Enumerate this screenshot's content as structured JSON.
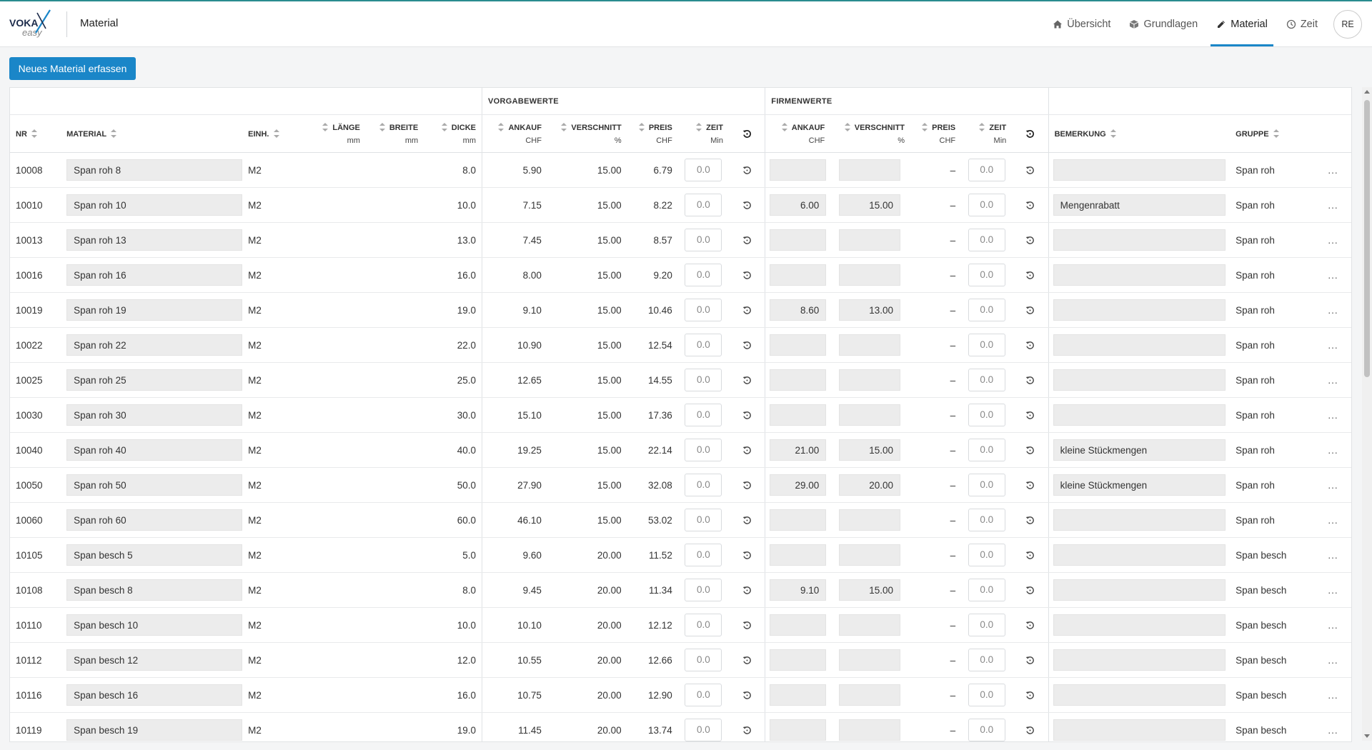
{
  "app": {
    "logo_text": "VOKA easy",
    "page_title": "Material",
    "nav": [
      {
        "label": "Übersicht",
        "icon": "home-icon"
      },
      {
        "label": "Grundlagen",
        "icon": "cube-icon"
      },
      {
        "label": "Material",
        "icon": "pencil-ruler-icon",
        "active": true
      },
      {
        "label": "Zeit",
        "icon": "clock-icon"
      }
    ],
    "user_initials": "RE"
  },
  "toolbar": {
    "new_material_label": "Neues Material erfassen"
  },
  "table": {
    "groups": {
      "vorgabewerte": "VORGABEWERTE",
      "firmenwerte": "FIRMENWERTE"
    },
    "headers": {
      "nr": "NR",
      "material": "MATERIAL",
      "einh": "EINH.",
      "laenge": "LÄNGE",
      "laenge_unit": "mm",
      "breite": "BREITE",
      "breite_unit": "mm",
      "dicke": "DICKE",
      "dicke_unit": "mm",
      "v_ankauf": "ANKAUF",
      "v_ankauf_unit": "CHF",
      "v_verschnitt": "VERSCHNITT",
      "v_verschnitt_unit": "%",
      "v_preis": "PREIS",
      "v_preis_unit": "CHF",
      "v_zeit": "ZEIT",
      "v_zeit_unit": "Min",
      "f_ankauf": "ANKAUF",
      "f_ankauf_unit": "CHF",
      "f_verschnitt": "VERSCHNITT",
      "f_verschnitt_unit": "%",
      "f_preis": "PREIS",
      "f_preis_unit": "CHF",
      "f_zeit": "ZEIT",
      "f_zeit_unit": "Min",
      "bemerkung": "BEMERKUNG",
      "gruppe": "GRUPPE"
    },
    "rows": [
      {
        "nr": "10008",
        "material": "Span roh 8",
        "einh": "M2",
        "dicke": "8.0",
        "v_ankauf": "5.90",
        "v_verschnitt": "15.00",
        "v_preis": "6.79",
        "v_zeit": "0.0",
        "f_ankauf": "",
        "f_verschnitt": "",
        "f_preis": "–",
        "f_zeit": "0.0",
        "bemerkung": "",
        "gruppe": "Span roh",
        "more": "..."
      },
      {
        "nr": "10010",
        "material": "Span roh 10",
        "einh": "M2",
        "dicke": "10.0",
        "v_ankauf": "7.15",
        "v_verschnitt": "15.00",
        "v_preis": "8.22",
        "v_zeit": "0.0",
        "f_ankauf": "6.00",
        "f_verschnitt": "15.00",
        "f_preis": "–",
        "f_zeit": "0.0",
        "bemerkung": "Mengenrabatt",
        "gruppe": "Span roh",
        "more": "..."
      },
      {
        "nr": "10013",
        "material": "Span roh 13",
        "einh": "M2",
        "dicke": "13.0",
        "v_ankauf": "7.45",
        "v_verschnitt": "15.00",
        "v_preis": "8.57",
        "v_zeit": "0.0",
        "f_ankauf": "",
        "f_verschnitt": "",
        "f_preis": "–",
        "f_zeit": "0.0",
        "bemerkung": "",
        "gruppe": "Span roh",
        "more": "..."
      },
      {
        "nr": "10016",
        "material": "Span roh 16",
        "einh": "M2",
        "dicke": "16.0",
        "v_ankauf": "8.00",
        "v_verschnitt": "15.00",
        "v_preis": "9.20",
        "v_zeit": "0.0",
        "f_ankauf": "",
        "f_verschnitt": "",
        "f_preis": "–",
        "f_zeit": "0.0",
        "bemerkung": "",
        "gruppe": "Span roh",
        "more": "..."
      },
      {
        "nr": "10019",
        "material": "Span roh 19",
        "einh": "M2",
        "dicke": "19.0",
        "v_ankauf": "9.10",
        "v_verschnitt": "15.00",
        "v_preis": "10.46",
        "v_zeit": "0.0",
        "f_ankauf": "8.60",
        "f_verschnitt": "13.00",
        "f_preis": "–",
        "f_zeit": "0.0",
        "bemerkung": "",
        "gruppe": "Span roh",
        "more": "..."
      },
      {
        "nr": "10022",
        "material": "Span roh 22",
        "einh": "M2",
        "dicke": "22.0",
        "v_ankauf": "10.90",
        "v_verschnitt": "15.00",
        "v_preis": "12.54",
        "v_zeit": "0.0",
        "f_ankauf": "",
        "f_verschnitt": "",
        "f_preis": "–",
        "f_zeit": "0.0",
        "bemerkung": "",
        "gruppe": "Span roh",
        "more": "..."
      },
      {
        "nr": "10025",
        "material": "Span roh 25",
        "einh": "M2",
        "dicke": "25.0",
        "v_ankauf": "12.65",
        "v_verschnitt": "15.00",
        "v_preis": "14.55",
        "v_zeit": "0.0",
        "f_ankauf": "",
        "f_verschnitt": "",
        "f_preis": "–",
        "f_zeit": "0.0",
        "bemerkung": "",
        "gruppe": "Span roh",
        "more": "..."
      },
      {
        "nr": "10030",
        "material": "Span roh 30",
        "einh": "M2",
        "dicke": "30.0",
        "v_ankauf": "15.10",
        "v_verschnitt": "15.00",
        "v_preis": "17.36",
        "v_zeit": "0.0",
        "f_ankauf": "",
        "f_verschnitt": "",
        "f_preis": "–",
        "f_zeit": "0.0",
        "bemerkung": "",
        "gruppe": "Span roh",
        "more": "..."
      },
      {
        "nr": "10040",
        "material": "Span roh 40",
        "einh": "M2",
        "dicke": "40.0",
        "v_ankauf": "19.25",
        "v_verschnitt": "15.00",
        "v_preis": "22.14",
        "v_zeit": "0.0",
        "f_ankauf": "21.00",
        "f_verschnitt": "15.00",
        "f_preis": "–",
        "f_zeit": "0.0",
        "bemerkung": "kleine Stückmengen",
        "gruppe": "Span roh",
        "more": "..."
      },
      {
        "nr": "10050",
        "material": "Span roh 50",
        "einh": "M2",
        "dicke": "50.0",
        "v_ankauf": "27.90",
        "v_verschnitt": "15.00",
        "v_preis": "32.08",
        "v_zeit": "0.0",
        "f_ankauf": "29.00",
        "f_verschnitt": "20.00",
        "f_preis": "–",
        "f_zeit": "0.0",
        "bemerkung": "kleine Stückmengen",
        "gruppe": "Span roh",
        "more": "..."
      },
      {
        "nr": "10060",
        "material": "Span roh 60",
        "einh": "M2",
        "dicke": "60.0",
        "v_ankauf": "46.10",
        "v_verschnitt": "15.00",
        "v_preis": "53.02",
        "v_zeit": "0.0",
        "f_ankauf": "",
        "f_verschnitt": "",
        "f_preis": "–",
        "f_zeit": "0.0",
        "bemerkung": "",
        "gruppe": "Span roh",
        "more": "..."
      },
      {
        "nr": "10105",
        "material": "Span besch 5",
        "einh": "M2",
        "dicke": "5.0",
        "v_ankauf": "9.60",
        "v_verschnitt": "20.00",
        "v_preis": "11.52",
        "v_zeit": "0.0",
        "f_ankauf": "",
        "f_verschnitt": "",
        "f_preis": "–",
        "f_zeit": "0.0",
        "bemerkung": "",
        "gruppe": "Span besch",
        "more": "..."
      },
      {
        "nr": "10108",
        "material": "Span besch 8",
        "einh": "M2",
        "dicke": "8.0",
        "v_ankauf": "9.45",
        "v_verschnitt": "20.00",
        "v_preis": "11.34",
        "v_zeit": "0.0",
        "f_ankauf": "9.10",
        "f_verschnitt": "15.00",
        "f_preis": "–",
        "f_zeit": "0.0",
        "bemerkung": "",
        "gruppe": "Span besch",
        "more": "..."
      },
      {
        "nr": "10110",
        "material": "Span besch 10",
        "einh": "M2",
        "dicke": "10.0",
        "v_ankauf": "10.10",
        "v_verschnitt": "20.00",
        "v_preis": "12.12",
        "v_zeit": "0.0",
        "f_ankauf": "",
        "f_verschnitt": "",
        "f_preis": "–",
        "f_zeit": "0.0",
        "bemerkung": "",
        "gruppe": "Span besch",
        "more": "..."
      },
      {
        "nr": "10112",
        "material": "Span besch 12",
        "einh": "M2",
        "dicke": "12.0",
        "v_ankauf": "10.55",
        "v_verschnitt": "20.00",
        "v_preis": "12.66",
        "v_zeit": "0.0",
        "f_ankauf": "",
        "f_verschnitt": "",
        "f_preis": "–",
        "f_zeit": "0.0",
        "bemerkung": "",
        "gruppe": "Span besch",
        "more": "..."
      },
      {
        "nr": "10116",
        "material": "Span besch 16",
        "einh": "M2",
        "dicke": "16.0",
        "v_ankauf": "10.75",
        "v_verschnitt": "20.00",
        "v_preis": "12.90",
        "v_zeit": "0.0",
        "f_ankauf": "",
        "f_verschnitt": "",
        "f_preis": "–",
        "f_zeit": "0.0",
        "bemerkung": "",
        "gruppe": "Span besch",
        "more": "..."
      },
      {
        "nr": "10119",
        "material": "Span besch 19",
        "einh": "M2",
        "dicke": "19.0",
        "v_ankauf": "11.45",
        "v_verschnitt": "20.00",
        "v_preis": "13.74",
        "v_zeit": "0.0",
        "f_ankauf": "",
        "f_verschnitt": "",
        "f_preis": "–",
        "f_zeit": "0.0",
        "bemerkung": "",
        "gruppe": "Span besch",
        "more": "..."
      }
    ]
  },
  "colors": {
    "accent": "#1a86c8",
    "readonly_bg": "#ececec",
    "topline": "#2a8c8f"
  }
}
